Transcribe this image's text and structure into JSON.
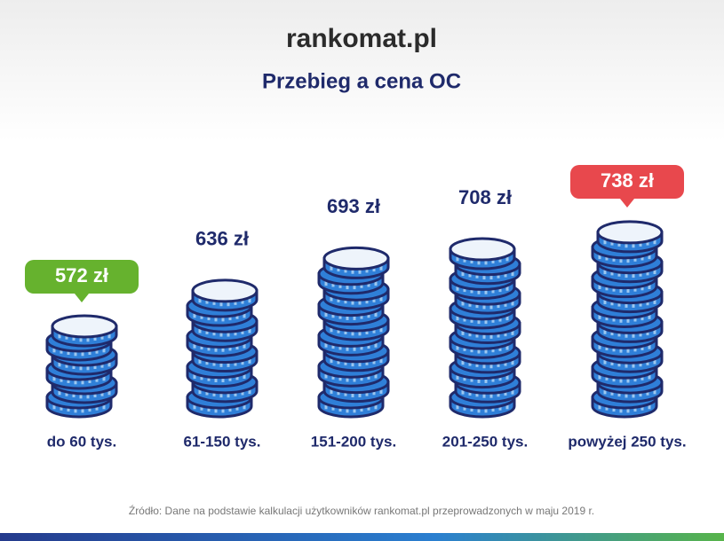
{
  "logo": "rankomat.pl",
  "chart_data": {
    "type": "coin-stack",
    "title": "Przebieg a cena OC",
    "categories": [
      "do 60 tys.",
      "61-150 tys.",
      "151-200 tys.",
      "201-250 tys.",
      "powyżej 250 tys."
    ],
    "values": [
      572,
      636,
      693,
      708,
      738
    ],
    "value_labels": [
      "572 zł",
      "636 zł",
      "693 zł",
      "708 zł",
      "738 zł"
    ],
    "color": "#2f7fd8",
    "min_color": "#66b22e",
    "max_color": "#e8484d"
  },
  "source": "Źródło: Dane na podstawie kalkulacji użytkowników rankomat.pl przeprowadzonych w maju 2019 r."
}
